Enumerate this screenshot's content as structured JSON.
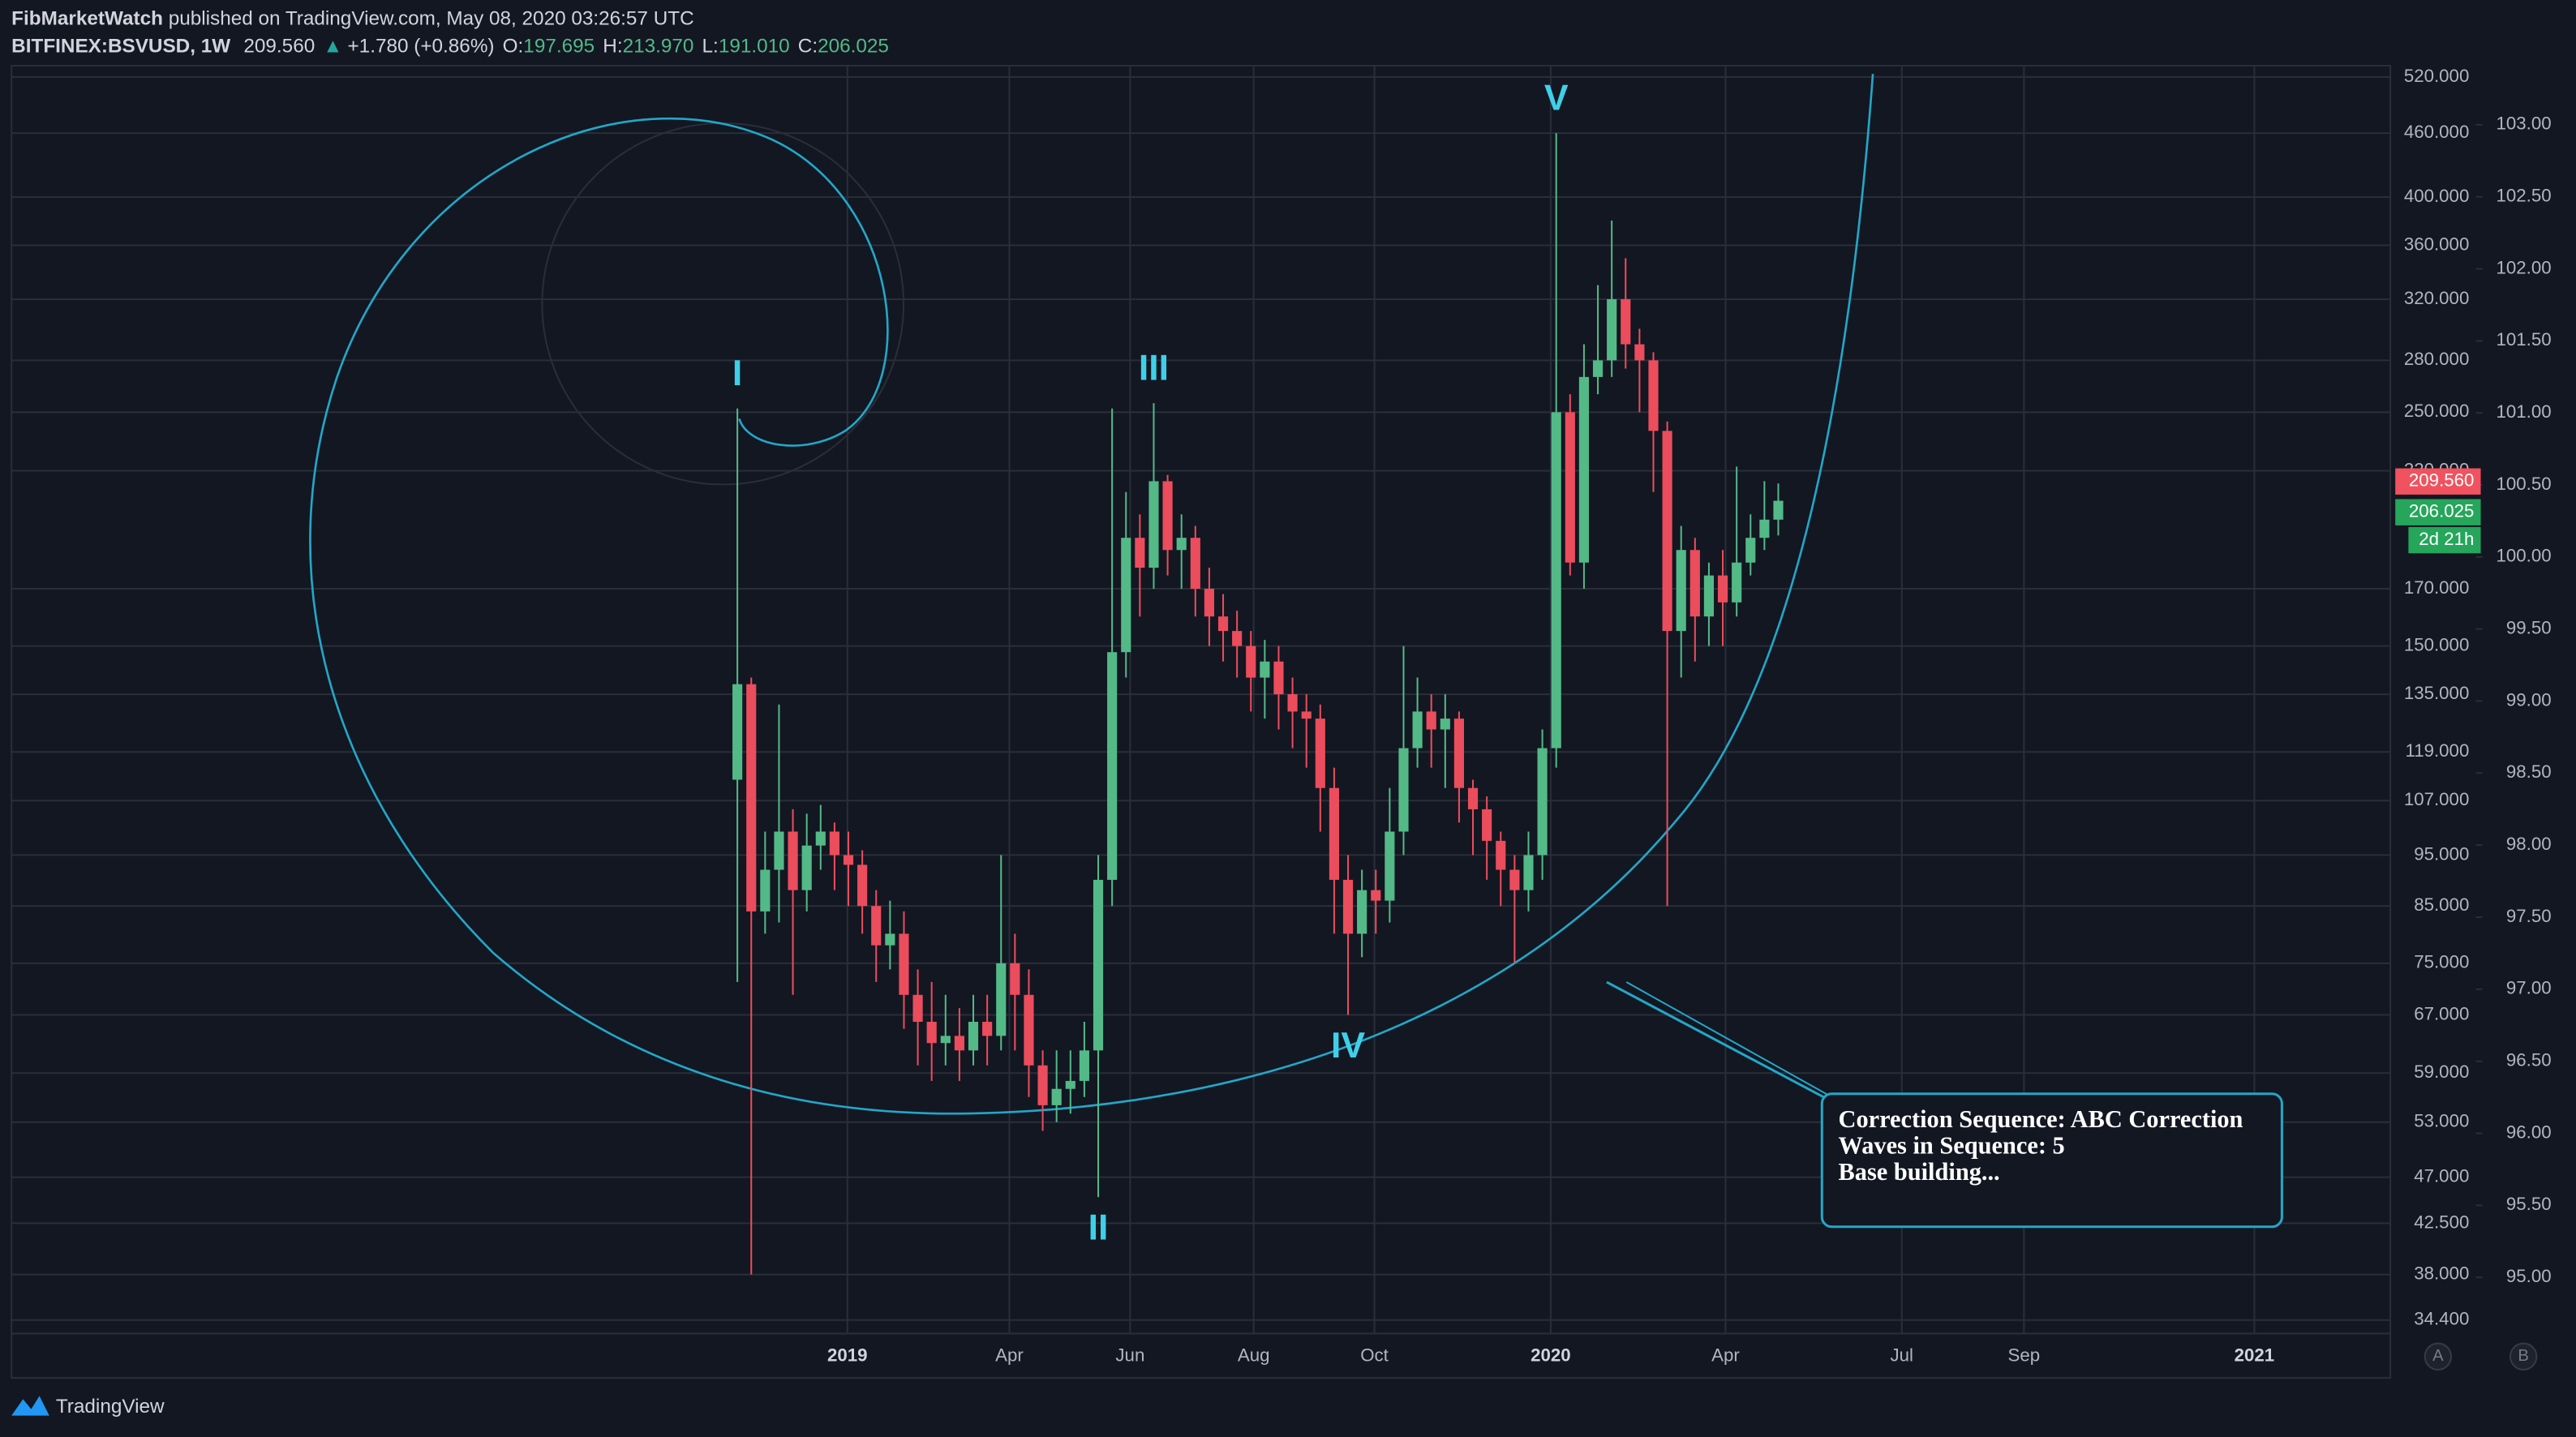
{
  "header": {
    "author": "FibMarketWatch",
    "published": "published on TradingView.com, May 08, 2020 03:26:57 UTC",
    "symbol": "BITFINEX:BSVUSD, 1W",
    "last": "209.560",
    "change": "+1.780 (+0.86%)",
    "ohlc": [
      {
        "key": "O:",
        "val": "197.695"
      },
      {
        "key": "H:",
        "val": "213.970"
      },
      {
        "key": "L:",
        "val": "191.010"
      },
      {
        "key": "C:",
        "val": "206.025"
      }
    ]
  },
  "chart_data": {
    "type": "candlestick",
    "x": [
      0,
      1,
      2,
      3,
      4,
      5,
      6,
      7,
      8,
      9,
      10,
      11,
      12,
      13,
      14,
      15,
      16,
      17,
      18,
      19,
      20,
      21,
      22,
      23,
      24,
      25,
      26,
      27,
      28,
      29,
      30,
      31,
      32,
      33,
      34,
      35,
      36,
      37,
      38,
      39,
      40,
      41,
      42,
      43,
      44,
      45,
      46,
      47,
      48,
      49,
      50,
      51,
      52,
      53,
      54,
      55,
      56,
      57,
      58,
      59,
      60,
      61,
      62,
      63,
      64,
      65,
      66,
      67,
      68,
      69,
      70,
      71,
      72,
      73,
      74,
      75
    ],
    "open": [
      112,
      138,
      84,
      92,
      100,
      88,
      97,
      100,
      95,
      93,
      85,
      78,
      80,
      70,
      66,
      63,
      64,
      62,
      66,
      64,
      75,
      70,
      60,
      55,
      57,
      58,
      62,
      90,
      148,
      190,
      178,
      215,
      185,
      190,
      170,
      160,
      155,
      150,
      140,
      145,
      135,
      130,
      128,
      110,
      90,
      80,
      88,
      86,
      100,
      120,
      130,
      125,
      128,
      110,
      105,
      98,
      92,
      88,
      95,
      120,
      250,
      180,
      270,
      280,
      320,
      290,
      280,
      240,
      155,
      185,
      160,
      175,
      165,
      180,
      190,
      197.695
    ],
    "high": [
      252,
      140,
      100,
      132,
      105,
      104,
      106,
      102,
      100,
      96,
      88,
      86,
      84,
      74,
      72,
      70,
      68,
      70,
      70,
      95,
      80,
      74,
      62,
      62,
      62,
      66,
      95,
      252,
      210,
      200,
      255,
      218,
      200,
      195,
      178,
      168,
      162,
      155,
      152,
      150,
      140,
      135,
      132,
      115,
      95,
      92,
      92,
      110,
      150,
      140,
      135,
      135,
      130,
      112,
      108,
      100,
      95,
      100,
      125,
      460,
      260,
      290,
      330,
      380,
      350,
      300,
      285,
      245,
      195,
      190,
      180,
      185,
      222,
      200,
      215,
      213.97
    ],
    "low": [
      72,
      38,
      80,
      82,
      70,
      84,
      92,
      88,
      85,
      80,
      72,
      74,
      65,
      60,
      58,
      60,
      58,
      60,
      60,
      62,
      62,
      56,
      52,
      53,
      54,
      56,
      45,
      85,
      140,
      160,
      170,
      175,
      170,
      160,
      150,
      145,
      140,
      130,
      128,
      125,
      120,
      115,
      100,
      80,
      67,
      76,
      80,
      82,
      95,
      115,
      115,
      110,
      102,
      95,
      90,
      85,
      75,
      84,
      90,
      115,
      175,
      170,
      260,
      270,
      275,
      250,
      210,
      85,
      140,
      145,
      150,
      150,
      160,
      175,
      185,
      191.01
    ],
    "close": [
      138,
      84,
      92,
      100,
      88,
      97,
      100,
      95,
      93,
      85,
      78,
      80,
      70,
      66,
      63,
      64,
      62,
      66,
      64,
      75,
      70,
      60,
      55,
      57,
      58,
      62,
      90,
      148,
      190,
      178,
      215,
      185,
      190,
      170,
      160,
      155,
      150,
      140,
      145,
      135,
      130,
      128,
      110,
      90,
      80,
      88,
      86,
      100,
      120,
      130,
      125,
      128,
      110,
      105,
      98,
      92,
      88,
      95,
      120,
      250,
      180,
      270,
      280,
      320,
      290,
      280,
      240,
      155,
      185,
      160,
      175,
      165,
      180,
      190,
      197.695,
      206.025
    ],
    "up_color": "#53b987",
    "down_color": "#eb4d5c",
    "xlim": [
      -52.3,
      119.1
    ],
    "xticks": [
      {
        "value": 7.93,
        "label": "2019"
      },
      {
        "value": 19.6,
        "label": "Apr"
      },
      {
        "value": 28.3,
        "label": "Jun"
      },
      {
        "value": 37.2,
        "label": "Aug"
      },
      {
        "value": 45.9,
        "label": "Oct"
      },
      {
        "value": 58.6,
        "label": "2020"
      },
      {
        "value": 71.2,
        "label": "Apr"
      },
      {
        "value": 83.9,
        "label": "Jul"
      },
      {
        "value": 92.7,
        "label": "Sep"
      },
      {
        "value": 109.3,
        "label": "2021"
      }
    ],
    "ylim": [
      33.4,
      533
    ],
    "log_scale": true,
    "grid": true,
    "yticks": [
      {
        "value": 520,
        "label": "520.000"
      },
      {
        "value": 460,
        "label": "460.000"
      },
      {
        "value": 400,
        "label": "400.000"
      },
      {
        "value": 360,
        "label": "360.000"
      },
      {
        "value": 320,
        "label": "320.000"
      },
      {
        "value": 280,
        "label": "280.000"
      },
      {
        "value": 250,
        "label": "250.000"
      },
      {
        "value": 220,
        "label": "220.000"
      },
      {
        "value": 170,
        "label": "170.000"
      },
      {
        "value": 150,
        "label": "150.000"
      },
      {
        "value": 135,
        "label": "135.000"
      },
      {
        "value": 119,
        "label": "119.000"
      },
      {
        "value": 107,
        "label": "107.000"
      },
      {
        "value": 95,
        "label": "95.000"
      },
      {
        "value": 85,
        "label": "85.000"
      },
      {
        "value": 75,
        "label": "75.000"
      },
      {
        "value": 67,
        "label": "67.000"
      },
      {
        "value": 59,
        "label": "59.000"
      },
      {
        "value": 53,
        "label": "53.000"
      },
      {
        "value": 47,
        "label": "47.000"
      },
      {
        "value": 42.5,
        "label": "42.500"
      },
      {
        "value": 38,
        "label": "38.000"
      },
      {
        "value": 34.4,
        "label": "34.400"
      }
    ],
    "y2lim": [
      94.61,
      103.41
    ],
    "y2ticks": [
      {
        "value": 103,
        "label": "103.00"
      },
      {
        "value": 102.5,
        "label": "102.50"
      },
      {
        "value": 102,
        "label": "102.00"
      },
      {
        "value": 101.5,
        "label": "101.50"
      },
      {
        "value": 101,
        "label": "101.00"
      },
      {
        "value": 100.5,
        "label": "100.50"
      },
      {
        "value": 100,
        "label": "100.00"
      },
      {
        "value": 99.5,
        "label": "99.50"
      },
      {
        "value": 99,
        "label": "99.00"
      },
      {
        "value": 98.5,
        "label": "98.50"
      },
      {
        "value": 98,
        "label": "98.00"
      },
      {
        "value": 97.5,
        "label": "97.50"
      },
      {
        "value": 97,
        "label": "97.00"
      },
      {
        "value": 96.5,
        "label": "96.50"
      },
      {
        "value": 96,
        "label": "96.00"
      },
      {
        "value": 95.5,
        "label": "95.50"
      },
      {
        "value": 95,
        "label": "95.00"
      }
    ],
    "price_markers": [
      {
        "value": 209.56,
        "label": "209.560",
        "color": "#f0525f"
      },
      {
        "value": 206.025,
        "label": "206.025",
        "color": "#26a65b"
      }
    ],
    "countdown": "2d 21h",
    "wave_labels": [
      "I",
      "II",
      "III",
      "IV",
      "V"
    ],
    "annotation": [
      "Correction Sequence: ABC Correction",
      "Waves in Sequence: 5",
      "Base building..."
    ],
    "scale_buttons": [
      "A",
      "B"
    ]
  },
  "footer": {
    "brand": "TradingView"
  }
}
